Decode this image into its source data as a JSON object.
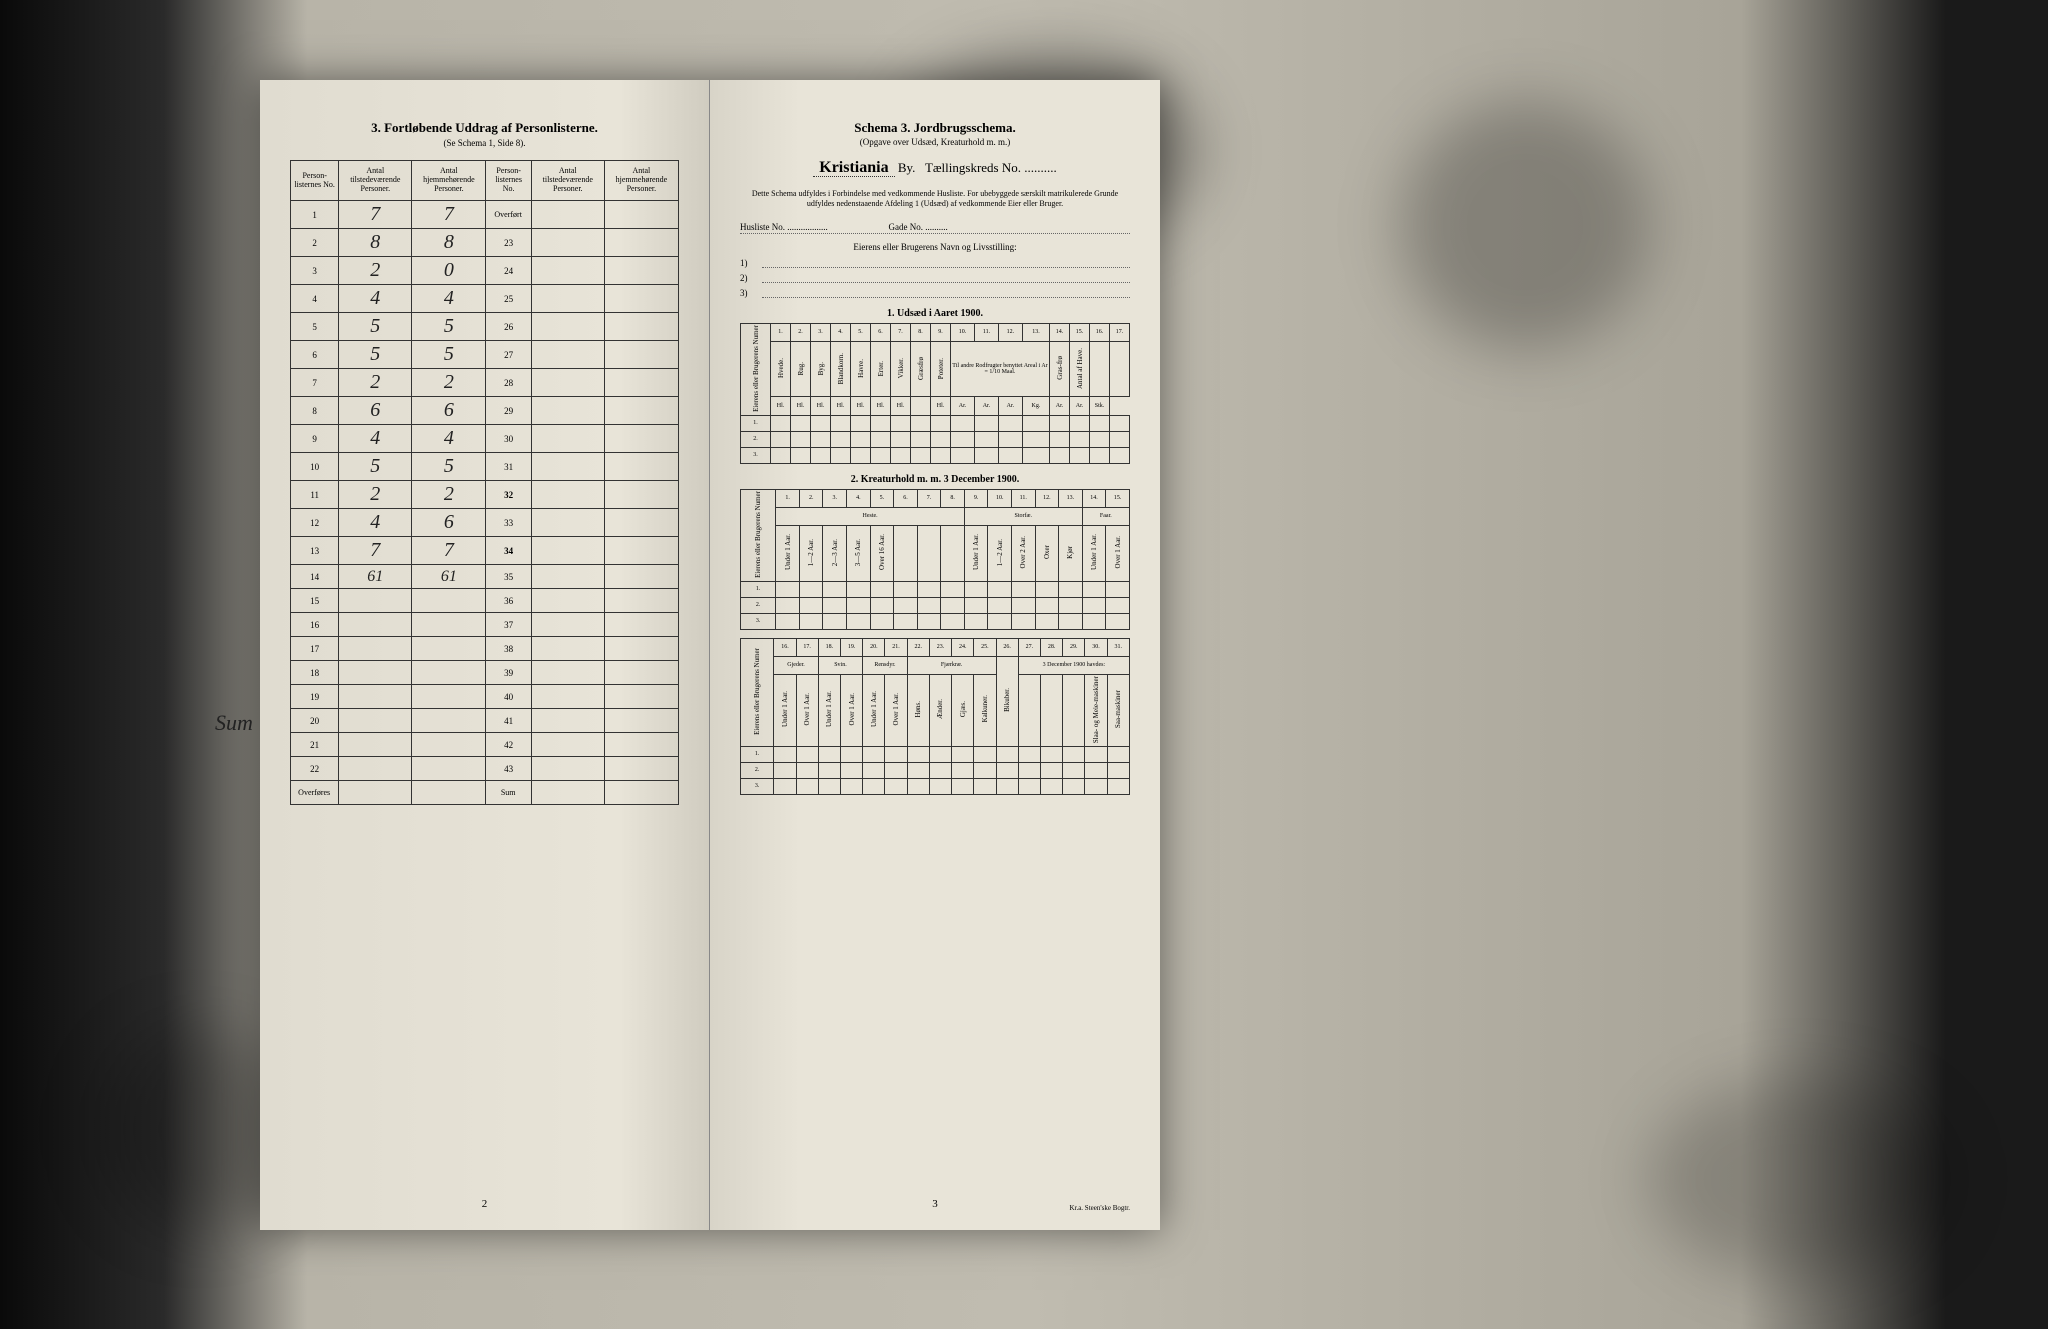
{
  "leftPage": {
    "title": "3. Fortløbende Uddrag af Personlisterne.",
    "subtitle": "(Se Schema 1, Side 8).",
    "headers": {
      "c1": "Person-listernes No.",
      "c2": "Antal tilstedeværende Personer.",
      "c3": "Antal hjemmehørende Personer.",
      "c4": "Person-listernes No.",
      "c5": "Antal tilstedeværende Personer.",
      "c6": "Antal hjemmehørende Personer."
    },
    "overfort": "Overført",
    "overfores": "Overføres",
    "sum": "Sum",
    "sumHand": "Sum",
    "rows": [
      {
        "n": "1",
        "a": "7",
        "b": "7",
        "m": "Overført"
      },
      {
        "n": "2",
        "a": "8",
        "b": "8",
        "m": "23"
      },
      {
        "n": "3",
        "a": "2",
        "b": "0",
        "m": "24"
      },
      {
        "n": "4",
        "a": "4",
        "b": "4",
        "m": "25"
      },
      {
        "n": "5",
        "a": "5",
        "b": "5",
        "m": "26"
      },
      {
        "n": "6",
        "a": "5",
        "b": "5",
        "m": "27"
      },
      {
        "n": "7",
        "a": "2",
        "b": "2",
        "m": "28"
      },
      {
        "n": "8",
        "a": "6",
        "b": "6",
        "m": "29"
      },
      {
        "n": "9",
        "a": "4",
        "b": "4",
        "m": "30"
      },
      {
        "n": "10",
        "a": "5",
        "b": "5",
        "m": "31"
      },
      {
        "n": "11",
        "a": "2",
        "b": "2",
        "m": "32"
      },
      {
        "n": "12",
        "a": "4",
        "b": "6",
        "m": "33"
      },
      {
        "n": "13",
        "a": "7",
        "b": "7",
        "m": "34"
      },
      {
        "n": "14",
        "a": "61",
        "b": "61",
        "m": "35"
      },
      {
        "n": "15",
        "a": "",
        "b": "",
        "m": "36"
      },
      {
        "n": "16",
        "a": "",
        "b": "",
        "m": "37"
      },
      {
        "n": "17",
        "a": "",
        "b": "",
        "m": "38"
      },
      {
        "n": "18",
        "a": "",
        "b": "",
        "m": "39"
      },
      {
        "n": "19",
        "a": "",
        "b": "",
        "m": "40"
      },
      {
        "n": "20",
        "a": "",
        "b": "",
        "m": "41"
      },
      {
        "n": "21",
        "a": "",
        "b": "",
        "m": "42"
      },
      {
        "n": "22",
        "a": "",
        "b": "",
        "m": "43"
      }
    ],
    "pageNum": "2"
  },
  "rightPage": {
    "schemaLabel": "Schema 3.",
    "schemaTitle": "Jordbrugsschema.",
    "schemaSub": "(Opgave over Udsæd, Kreaturhold m. m.)",
    "cityName": "Kristiania",
    "byLabel": "By.",
    "kredsLabel": "Tællingskreds No.",
    "instructions": "Dette Schema udfyldes i Forbindelse med vedkommende Husliste. For ubebyggede særskilt matrikulerede Grunde udfyldes nedenstaaende Afdeling 1 (Udsæd) af vedkommende Eier eller Bruger.",
    "huslisteLabel": "Husliste No.",
    "gadeLabel": "Gade No.",
    "ownerLabel": "Eierens eller Brugerens Navn og Livsstilling:",
    "section1Title": "1. Udsæd i Aaret 1900.",
    "section2Title": "2. Kreaturhold m. m. 3 December 1900.",
    "table1": {
      "nums": [
        "1.",
        "2.",
        "3.",
        "4.",
        "5.",
        "6.",
        "7.",
        "8.",
        "9.",
        "10.",
        "11.",
        "12.",
        "13.",
        "14.",
        "15.",
        "16.",
        "17."
      ],
      "sideHeader": "Eierens eller Brugerens Numer",
      "cols": [
        "Hvede.",
        "Rug.",
        "Byg.",
        "Blandkorn.",
        "Havre.",
        "Erter.",
        "Vikker.",
        "Græsfrø",
        "Poteter.",
        "Tur-nips",
        "Kaal-rabi",
        "",
        "Gras-frø",
        "Antal af Have.",
        "",
        ""
      ],
      "redskHeader": "Til andre Rodfrugter benyttet Areal i Ar = 1/10 Maal.",
      "units": [
        "Hl.",
        "Hl.",
        "Hl.",
        "Hl.",
        "Hl.",
        "Hl.",
        "Hl.",
        "",
        "Hl.",
        "Ar.",
        "Ar.",
        "Ar.",
        "Kg.",
        "Ar.",
        "Ar.",
        "Stk."
      ]
    },
    "table2a": {
      "nums": [
        "1.",
        "2.",
        "3.",
        "4.",
        "5.",
        "6.",
        "7.",
        "8.",
        "9.",
        "10.",
        "11.",
        "12.",
        "13.",
        "14.",
        "15."
      ],
      "groups": {
        "heste": "Heste.",
        "storfe": "Storfæ.",
        "faar": "Faar."
      },
      "cols": [
        "Under 1 Aar.",
        "1—2 Aar.",
        "2—3 Aar.",
        "3—5 Aar.",
        "Over 16 Aar.",
        "",
        "",
        "",
        "Under 1 Aar.",
        "1—2 Aar.",
        "Over 2 Aar.",
        "Oxer",
        "Kjør",
        "Under 1 Aar.",
        "Over 1 Aar."
      ],
      "afde": "Af de over 3 Aar gamle var:",
      "afde2": "Af de over 2 Aar gamle var:"
    },
    "table2b": {
      "nums": [
        "16.",
        "17.",
        "18.",
        "19.",
        "20.",
        "21.",
        "22.",
        "23.",
        "24.",
        "25.",
        "26.",
        "27.",
        "28.",
        "29.",
        "30.",
        "31."
      ],
      "groups": {
        "gjeder": "Gjeder.",
        "svin": "Svin.",
        "rensdyr": "Rensdyr.",
        "fjerkre": "Fjærkræ."
      },
      "cols": [
        "Under 1 Aar.",
        "Over 1 Aar.",
        "Under 1 Aar.",
        "Over 1 Aar.",
        "Under 1 Aar.",
        "Over 1 Aar.",
        "Høns.",
        "Ænder.",
        "Gjæs.",
        "Kalkuner.",
        "Bikuber.",
        "",
        "",
        "",
        "Slaa- og Meie-maskiner",
        "Saa-maskiner"
      ],
      "date1900": "3 December 1900 havdes:",
      "arb": "Arbeidsvogne:"
    },
    "pageNum": "3",
    "printer": "Kr.a. Steen'ske Bogtr."
  },
  "colors": {
    "paper": "#e8e4d8",
    "ink": "#1a1a1a",
    "border": "#333333",
    "dotted": "#666666"
  }
}
